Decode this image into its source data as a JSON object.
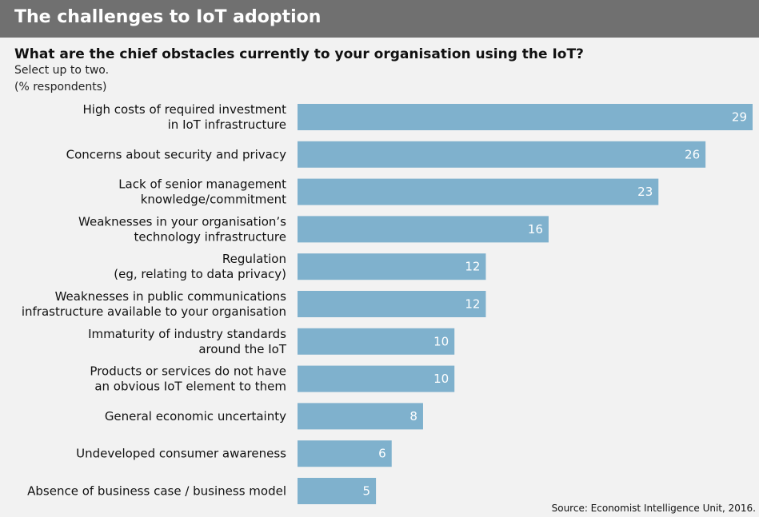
{
  "header": {
    "title": "The challenges to IoT adoption"
  },
  "question": "What are the chief obstacles currently to your organisation using the IoT?",
  "instruction": "Select up to two.",
  "unit_note": "(% respondents)",
  "source": "Source: Economist Intelligence Unit, 2016.",
  "colors": {
    "header_bg": "#707070",
    "bar": "#7fb1cd",
    "background": "#f2f2f2"
  },
  "chart_data": {
    "type": "bar",
    "orientation": "horizontal",
    "categories": [
      [
        "High costs of required investment",
        "in IoT infrastructure"
      ],
      [
        "Concerns about security and privacy"
      ],
      [
        "Lack of senior management",
        "knowledge/commitment"
      ],
      [
        "Weaknesses in your organisation’s",
        "technology infrastructure"
      ],
      [
        "Regulation",
        "(eg, relating to data privacy)"
      ],
      [
        "Weaknesses in public communications",
        "infrastructure available to your organisation"
      ],
      [
        "Immaturity of industry standards",
        "around the IoT"
      ],
      [
        "Products or services do not have",
        "an obvious IoT element to them"
      ],
      [
        "General economic uncertainty"
      ],
      [
        "Undeveloped consumer awareness"
      ],
      [
        "Absence of business case / business model"
      ]
    ],
    "values": [
      29,
      26,
      23,
      16,
      12,
      12,
      10,
      10,
      8,
      6,
      5
    ],
    "data_labels": [
      "29",
      "26",
      "23",
      "16",
      "12",
      "12",
      "10",
      "10",
      "8",
      "6",
      "5"
    ],
    "xlim": [
      0,
      29
    ],
    "grid": false,
    "legend": "none"
  }
}
